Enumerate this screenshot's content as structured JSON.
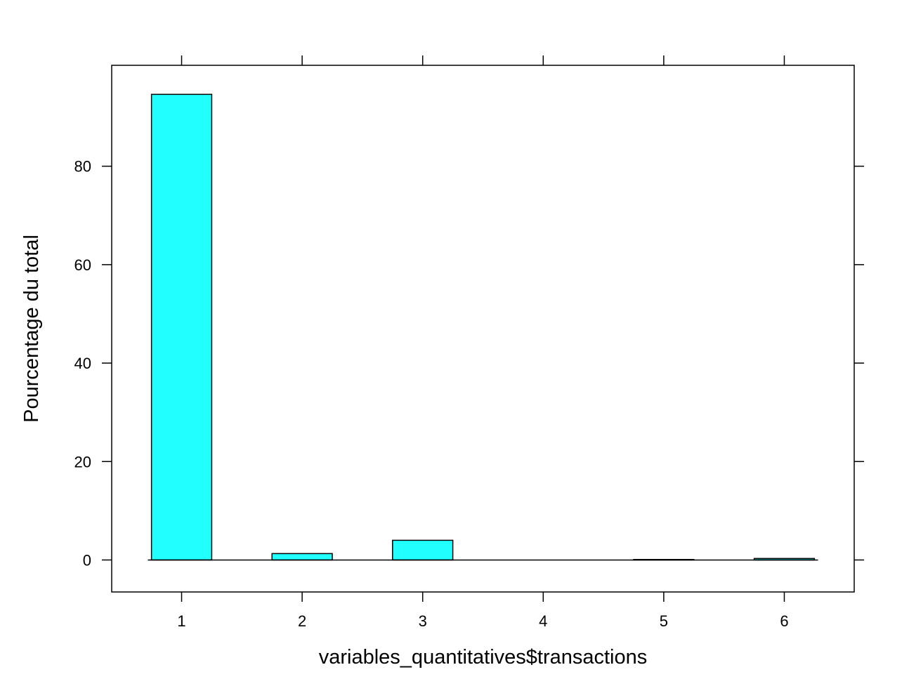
{
  "chart_data": {
    "type": "bar",
    "xlabel": "variables_quantitatives$transactions",
    "ylabel": "Pourcentage du total",
    "categories": [
      "1",
      "2",
      "3",
      "4",
      "5",
      "6"
    ],
    "x": [
      1,
      2,
      3,
      4,
      5,
      6
    ],
    "values": [
      94.6,
      1.3,
      4.0,
      0.0,
      0.1,
      0.3
    ],
    "xlim": [
      0.42,
      6.58
    ],
    "ylim": [
      -6.5,
      100.5
    ],
    "xticks": [
      1,
      2,
      3,
      4,
      5,
      6
    ],
    "yticks": [
      0,
      20,
      40,
      60,
      80
    ],
    "ytick_labels": [
      "0",
      "20",
      "40",
      "60",
      "80"
    ],
    "grid": false,
    "legend": "none",
    "colors": {
      "bar_fill": "#21FFFF",
      "bar_stroke": "#000000",
      "axis": "#000000",
      "background": "#FFFFFF"
    }
  }
}
